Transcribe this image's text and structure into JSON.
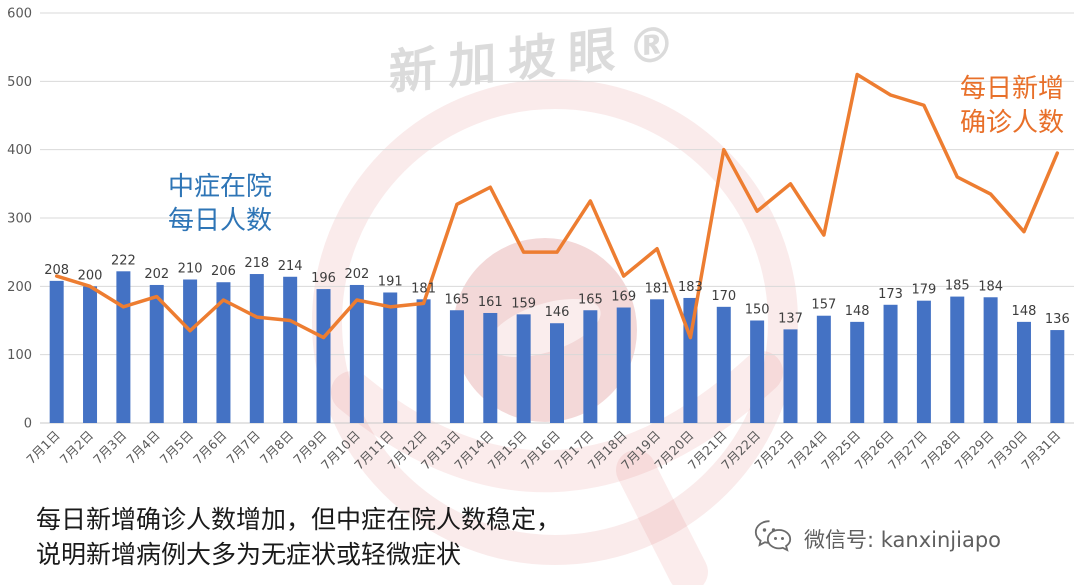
{
  "watermark": {
    "text": "新加坡眼®"
  },
  "series_labels": {
    "blue": {
      "lines": [
        "中症在院",
        "每日人数"
      ],
      "color": "#2e75b6"
    },
    "orange": {
      "lines": [
        "每日新增",
        "确诊人数"
      ],
      "color": "#e8702a"
    }
  },
  "caption": {
    "lines": [
      "每日新增确诊人数增加，但中症在院人数稳定，",
      "说明新增病例大多为无症状或轻微症状"
    ]
  },
  "footer": {
    "wechat_label": "微信号: kanxinjiapo"
  },
  "colors": {
    "bar": "#4472c4",
    "line": "#ed7d31",
    "grid": "#d9d9d9",
    "axis_text": "#595959"
  },
  "chart_data": {
    "type": "combo",
    "categories": [
      "7月1日",
      "7月2日",
      "7月3日",
      "7月4日",
      "7月5日",
      "7月6日",
      "7月7日",
      "7月8日",
      "7月9日",
      "7月10日",
      "7月11日",
      "7月12日",
      "7月13日",
      "7月14日",
      "7月15日",
      "7月16日",
      "7月17日",
      "7月18日",
      "7月19日",
      "7月20日",
      "7月21日",
      "7月22日",
      "7月23日",
      "7月24日",
      "7月25日",
      "7月26日",
      "7月27日",
      "7月28日",
      "7月29日",
      "7月30日",
      "7月31日"
    ],
    "series": [
      {
        "name": "中症在院每日人数",
        "type": "bar",
        "color": "#4472c4",
        "data_labels": true,
        "values": [
          208,
          200,
          222,
          202,
          210,
          206,
          218,
          214,
          196,
          202,
          191,
          181,
          165,
          161,
          159,
          146,
          165,
          169,
          181,
          183,
          170,
          150,
          137,
          157,
          148,
          173,
          179,
          185,
          184,
          148,
          136
        ]
      },
      {
        "name": "每日新增确诊人数",
        "type": "line",
        "color": "#ed7d31",
        "values": [
          215,
          200,
          170,
          185,
          135,
          180,
          155,
          150,
          125,
          180,
          170,
          175,
          320,
          345,
          250,
          250,
          325,
          215,
          255,
          125,
          400,
          310,
          350,
          275,
          510,
          480,
          465,
          360,
          335,
          280,
          395
        ]
      }
    ],
    "ylim": [
      0,
      600
    ],
    "ytick_interval": 100,
    "grid": true,
    "legend_position": "none",
    "x_tick_rotation": -45
  }
}
